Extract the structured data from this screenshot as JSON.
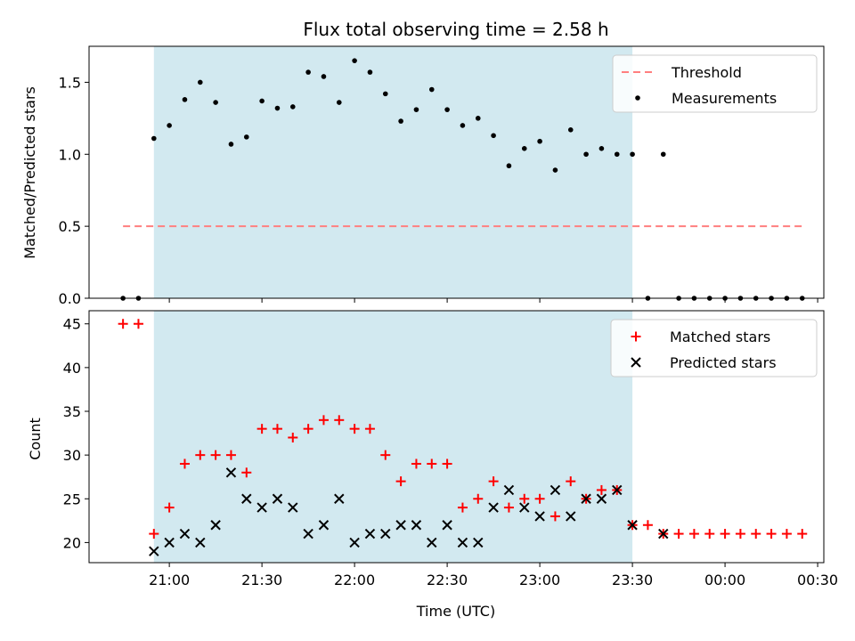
{
  "chart_data": [
    {
      "type": "scatter",
      "title": "Flux total observing time = 2.58 h",
      "xlabel": "",
      "ylabel": "Matched/Predicted stars",
      "ylim": [
        0,
        1.75
      ],
      "yticks": [
        "0.0",
        "0.5",
        "1.0",
        "1.5"
      ],
      "ytick_values": [
        0,
        0.5,
        1.0,
        1.5
      ],
      "shaded_region": {
        "start": "20:55",
        "end": "23:30",
        "color": "#d2e9f0"
      },
      "legend": {
        "position": "top-right"
      },
      "series": [
        {
          "name": "Threshold",
          "style": "dashed-line",
          "color": "#ff7f7f",
          "x": [
            "20:45",
            "00:25"
          ],
          "y": [
            0.5,
            0.5
          ]
        },
        {
          "name": "Measurements",
          "style": "dot",
          "color": "#000000",
          "x": [
            "20:45",
            "20:50",
            "20:55",
            "21:00",
            "21:05",
            "21:10",
            "21:15",
            "21:20",
            "21:25",
            "21:30",
            "21:35",
            "21:40",
            "21:45",
            "21:50",
            "21:55",
            "22:00",
            "22:05",
            "22:10",
            "22:15",
            "22:20",
            "22:25",
            "22:30",
            "22:35",
            "22:40",
            "22:45",
            "22:50",
            "22:55",
            "23:00",
            "23:05",
            "23:10",
            "23:15",
            "23:20",
            "23:25",
            "23:30",
            "23:35",
            "23:40",
            "23:45",
            "23:50",
            "23:55",
            "00:00",
            "00:05",
            "00:10",
            "00:15",
            "00:20",
            "00:25"
          ],
          "y": [
            0,
            0,
            1.11,
            1.2,
            1.38,
            1.5,
            1.36,
            1.07,
            1.12,
            1.37,
            1.32,
            1.33,
            1.57,
            1.54,
            1.36,
            1.65,
            1.57,
            1.42,
            1.23,
            1.31,
            1.45,
            1.31,
            1.2,
            1.25,
            1.13,
            0.92,
            1.04,
            1.09,
            0.89,
            1.17,
            1.0,
            1.04,
            1.0,
            1.0,
            0,
            1.0,
            0,
            0,
            0,
            0,
            0,
            0,
            0,
            0,
            0
          ]
        }
      ]
    },
    {
      "type": "scatter",
      "title": "",
      "xlabel": "Time (UTC)",
      "ylabel": "Count",
      "ylim": [
        17.7,
        46.5
      ],
      "yticks": [
        "20",
        "25",
        "30",
        "35",
        "40",
        "45"
      ],
      "ytick_values": [
        20,
        25,
        30,
        35,
        40,
        45
      ],
      "xlim": [
        "20:34",
        "00:32"
      ],
      "xticks": [
        "21:00",
        "21:30",
        "22:00",
        "22:30",
        "23:00",
        "23:30",
        "00:00",
        "00:30"
      ],
      "shaded_region": {
        "start": "20:55",
        "end": "23:30",
        "color": "#d2e9f0"
      },
      "legend": {
        "position": "top-right"
      },
      "series": [
        {
          "name": "Matched stars",
          "style": "plus",
          "color": "#ff0000",
          "x": [
            "20:45",
            "20:50",
            "20:55",
            "21:00",
            "21:05",
            "21:10",
            "21:15",
            "21:20",
            "21:25",
            "21:30",
            "21:35",
            "21:40",
            "21:45",
            "21:50",
            "21:55",
            "22:00",
            "22:05",
            "22:10",
            "22:15",
            "22:20",
            "22:25",
            "22:30",
            "22:35",
            "22:40",
            "22:45",
            "22:50",
            "22:55",
            "23:00",
            "23:05",
            "23:10",
            "23:15",
            "23:20",
            "23:25",
            "23:30",
            "23:35",
            "23:40",
            "23:45",
            "23:50",
            "23:55",
            "00:00",
            "00:05",
            "00:10",
            "00:15",
            "00:20",
            "00:25"
          ],
          "y": [
            45,
            45,
            21,
            24,
            29,
            30,
            30,
            30,
            28,
            33,
            33,
            32,
            33,
            34,
            34,
            33,
            33,
            30,
            27,
            29,
            29,
            29,
            24,
            25,
            27,
            24,
            25,
            25,
            23,
            27,
            25,
            26,
            26,
            22,
            22,
            21,
            21,
            21,
            21,
            21,
            21,
            21,
            21,
            21,
            21
          ]
        },
        {
          "name": "Predicted stars",
          "style": "x",
          "color": "#000000",
          "x": [
            "20:55",
            "21:00",
            "21:05",
            "21:10",
            "21:15",
            "21:20",
            "21:25",
            "21:30",
            "21:35",
            "21:40",
            "21:45",
            "21:50",
            "21:55",
            "22:00",
            "22:05",
            "22:10",
            "22:15",
            "22:20",
            "22:25",
            "22:30",
            "22:35",
            "22:40",
            "22:45",
            "22:50",
            "22:55",
            "23:00",
            "23:05",
            "23:10",
            "23:15",
            "23:20",
            "23:25",
            "23:30",
            "23:40"
          ],
          "y": [
            19,
            20,
            21,
            20,
            22,
            28,
            25,
            24,
            25,
            24,
            21,
            22,
            25,
            20,
            21,
            21,
            22,
            22,
            20,
            22,
            20,
            20,
            24,
            26,
            24,
            23,
            26,
            23,
            25,
            25,
            26,
            22,
            21
          ]
        }
      ]
    }
  ]
}
